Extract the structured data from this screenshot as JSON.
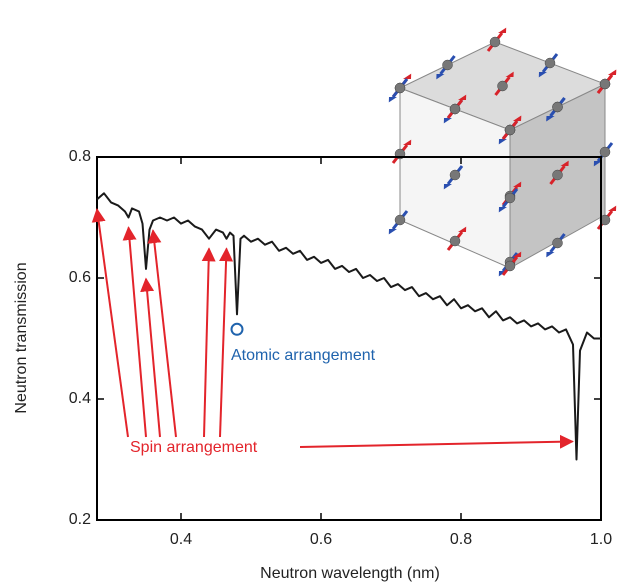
{
  "chart_data": {
    "type": "line",
    "xlabel": "Neutron wavelength (nm)",
    "ylabel": "Neutron transmission",
    "x": [
      0.28,
      0.29,
      0.3,
      0.31,
      0.32,
      0.325,
      0.33,
      0.34,
      0.345,
      0.35,
      0.355,
      0.36,
      0.37,
      0.38,
      0.39,
      0.4,
      0.41,
      0.42,
      0.43,
      0.44,
      0.45,
      0.46,
      0.465,
      0.47,
      0.475,
      0.48,
      0.485,
      0.49,
      0.5,
      0.51,
      0.52,
      0.53,
      0.54,
      0.55,
      0.56,
      0.57,
      0.58,
      0.59,
      0.6,
      0.61,
      0.62,
      0.63,
      0.64,
      0.65,
      0.66,
      0.67,
      0.68,
      0.69,
      0.7,
      0.71,
      0.72,
      0.73,
      0.74,
      0.75,
      0.76,
      0.77,
      0.78,
      0.79,
      0.8,
      0.81,
      0.82,
      0.83,
      0.84,
      0.85,
      0.86,
      0.87,
      0.88,
      0.89,
      0.9,
      0.91,
      0.92,
      0.93,
      0.94,
      0.95,
      0.96,
      0.965,
      0.97,
      0.98,
      0.99,
      1.0
    ],
    "values": [
      0.73,
      0.74,
      0.725,
      0.72,
      0.71,
      0.7,
      0.715,
      0.71,
      0.69,
      0.615,
      0.68,
      0.695,
      0.7,
      0.695,
      0.7,
      0.69,
      0.695,
      0.685,
      0.68,
      0.665,
      0.68,
      0.675,
      0.665,
      0.675,
      0.67,
      0.54,
      0.665,
      0.67,
      0.66,
      0.665,
      0.655,
      0.66,
      0.645,
      0.65,
      0.64,
      0.645,
      0.63,
      0.635,
      0.625,
      0.63,
      0.615,
      0.62,
      0.61,
      0.615,
      0.6,
      0.605,
      0.595,
      0.6,
      0.585,
      0.59,
      0.58,
      0.585,
      0.57,
      0.575,
      0.565,
      0.57,
      0.555,
      0.565,
      0.55,
      0.555,
      0.545,
      0.55,
      0.535,
      0.545,
      0.53,
      0.535,
      0.525,
      0.53,
      0.52,
      0.525,
      0.515,
      0.52,
      0.51,
      0.515,
      0.49,
      0.3,
      0.48,
      0.51,
      0.5,
      0.5
    ],
    "color": "#1a1a1a",
    "xlim": [
      0.28,
      1.0
    ],
    "ylim": [
      0.2,
      0.8
    ],
    "xticks": [
      0.4,
      0.6,
      0.8,
      {
        "value": 1.0,
        "label": "1.0"
      }
    ],
    "yticks": [
      0.2,
      0.4,
      0.6,
      0.8
    ],
    "annotations": [
      {
        "text": "Spin arrangement",
        "color": "#e3242b"
      },
      {
        "text": "Atomic arrangement",
        "color": "#1f63ad"
      }
    ]
  }
}
